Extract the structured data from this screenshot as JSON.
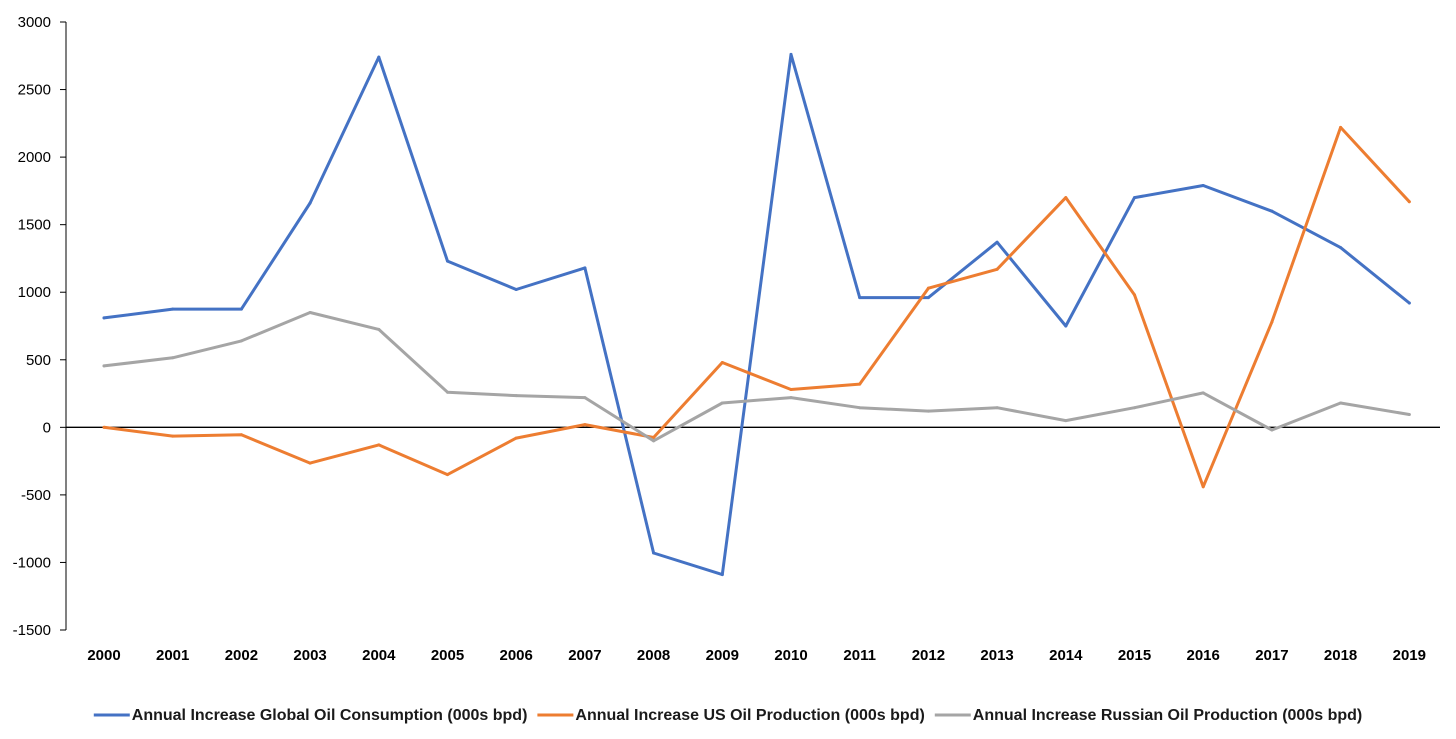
{
  "chart_data": {
    "type": "line",
    "title": "",
    "xlabel": "",
    "ylabel": "",
    "categories": [
      "2000",
      "2001",
      "2002",
      "2003",
      "2004",
      "2005",
      "2006",
      "2007",
      "2008",
      "2009",
      "2010",
      "2011",
      "2012",
      "2013",
      "2014",
      "2015",
      "2016",
      "2017",
      "2018",
      "2019"
    ],
    "ylim": [
      -1500,
      3000
    ],
    "yticks": [
      3000,
      2500,
      2000,
      1500,
      1000,
      500,
      0,
      -500,
      -1000,
      -1500
    ],
    "grid": false,
    "legend_position": "bottom",
    "series": [
      {
        "name": "Annual Increase Global Oil Consumption (000s bpd)",
        "color": "#4472C4",
        "values": [
          810,
          875,
          875,
          1660,
          2740,
          1230,
          1020,
          1180,
          -930,
          -1090,
          2760,
          960,
          960,
          1370,
          750,
          1700,
          1790,
          1600,
          1330,
          920
        ]
      },
      {
        "name": "Annual Increase US Oil Production (000s bpd)",
        "color": "#ED7D31",
        "values": [
          0,
          -65,
          -55,
          -265,
          -130,
          -350,
          -80,
          20,
          -75,
          480,
          280,
          320,
          1030,
          1170,
          1700,
          980,
          -440,
          780,
          2220,
          1670
        ]
      },
      {
        "name": "Annual Increase Russian Oil Production (000s bpd)",
        "color": "#A5A5A5",
        "values": [
          455,
          515,
          640,
          850,
          725,
          260,
          235,
          220,
          -100,
          180,
          220,
          145,
          120,
          145,
          50,
          145,
          255,
          -20,
          180,
          95
        ]
      }
    ]
  }
}
